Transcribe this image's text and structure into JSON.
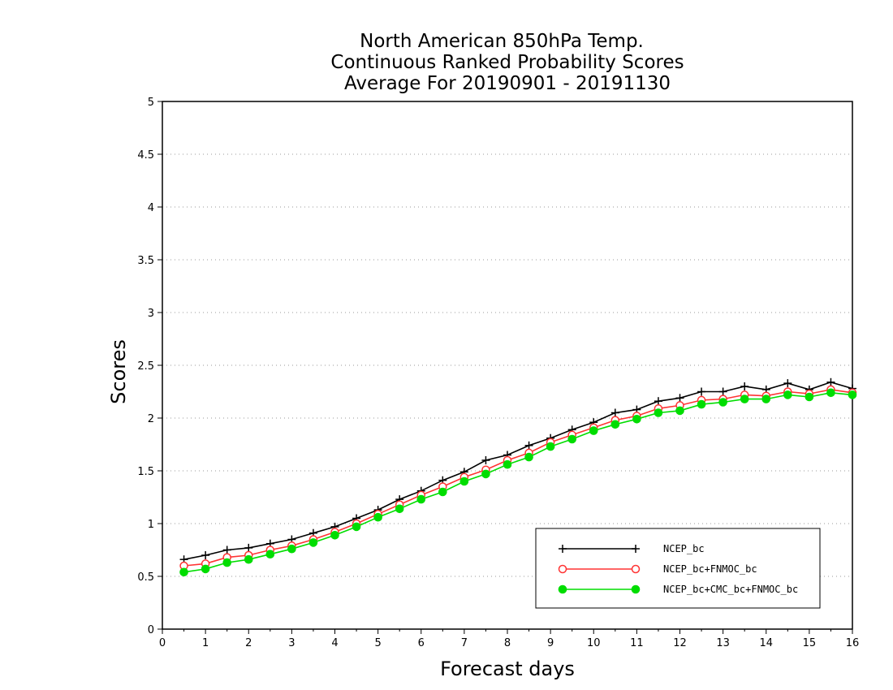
{
  "chart_data": {
    "type": "line",
    "title": [
      "North American 850hPa Temp.",
      "Continuous Ranked Probability Scores",
      "Average For 20190901 - 20191130"
    ],
    "xlabel": "Forecast days",
    "ylabel": "Scores",
    "xlim": [
      0,
      16
    ],
    "ylim": [
      0,
      5
    ],
    "xticks": [
      0,
      1,
      2,
      3,
      4,
      5,
      6,
      7,
      8,
      9,
      10,
      11,
      12,
      13,
      14,
      15,
      16
    ],
    "yticks": [
      0,
      0.5,
      1,
      1.5,
      2,
      2.5,
      3,
      3.5,
      4,
      4.5,
      5
    ],
    "ytick_labels": [
      "0",
      "0.5",
      "1",
      "1.5",
      "2",
      "2.5",
      "3",
      "3.5",
      "4",
      "4.5",
      "5"
    ],
    "grid": "horizontal-dotted",
    "legend_position": "bottom-right",
    "x": [
      0.5,
      1,
      1.5,
      2,
      2.5,
      3,
      3.5,
      4,
      4.5,
      5,
      5.5,
      6,
      6.5,
      7,
      7.5,
      8,
      8.5,
      9,
      9.5,
      10,
      10.5,
      11,
      11.5,
      12,
      12.5,
      13,
      13.5,
      14,
      14.5,
      15,
      15.5,
      16
    ],
    "series": [
      {
        "name": "NCEP_bc",
        "color": "#000000",
        "marker": "plus",
        "values": [
          0.66,
          0.7,
          0.75,
          0.77,
          0.81,
          0.85,
          0.91,
          0.97,
          1.05,
          1.13,
          1.23,
          1.31,
          1.41,
          1.49,
          1.6,
          1.65,
          1.74,
          1.81,
          1.89,
          1.96,
          2.05,
          2.08,
          2.16,
          2.19,
          2.25,
          2.25,
          2.3,
          2.27,
          2.33,
          2.27,
          2.34,
          2.28
        ]
      },
      {
        "name": "NCEP_bc+FNMOC_bc",
        "color": "#ff3333",
        "marker": "open-circle",
        "values": [
          0.6,
          0.62,
          0.68,
          0.7,
          0.75,
          0.79,
          0.85,
          0.92,
          1.0,
          1.09,
          1.18,
          1.27,
          1.35,
          1.44,
          1.51,
          1.6,
          1.67,
          1.77,
          1.84,
          1.91,
          1.98,
          2.02,
          2.09,
          2.12,
          2.17,
          2.18,
          2.22,
          2.21,
          2.25,
          2.23,
          2.27,
          2.24
        ]
      },
      {
        "name": "NCEP_bc+CMC_bc+FNMOC_bc",
        "color": "#00dd00",
        "marker": "filled-circle",
        "values": [
          0.54,
          0.57,
          0.63,
          0.66,
          0.71,
          0.76,
          0.82,
          0.89,
          0.97,
          1.06,
          1.14,
          1.23,
          1.3,
          1.4,
          1.47,
          1.56,
          1.63,
          1.73,
          1.8,
          1.88,
          1.94,
          1.99,
          2.05,
          2.07,
          2.13,
          2.15,
          2.18,
          2.18,
          2.22,
          2.2,
          2.24,
          2.22
        ]
      }
    ]
  }
}
